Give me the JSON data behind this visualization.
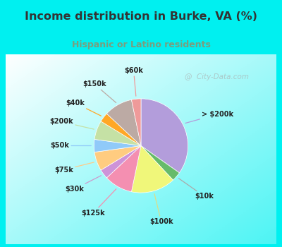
{
  "title": "Income distribution in Burke, VA (%)",
  "subtitle": "Hispanic or Latino residents",
  "title_color": "#333333",
  "subtitle_color": "#7a9e7e",
  "bg_cyan": "#00f0f0",
  "slices": [
    {
      "label": "> $200k",
      "value": 32,
      "color": "#b39ddb"
    },
    {
      "label": "$10k",
      "value": 3,
      "color": "#66bb6a"
    },
    {
      "label": "$100k",
      "value": 14,
      "color": "#f0f77a"
    },
    {
      "label": "$125k",
      "value": 9,
      "color": "#f48fb1"
    },
    {
      "label": "$30k",
      "value": 3,
      "color": "#ce93d8"
    },
    {
      "label": "$75k",
      "value": 6,
      "color": "#ffcc80"
    },
    {
      "label": "$50k",
      "value": 4,
      "color": "#90caf9"
    },
    {
      "label": "$200k",
      "value": 6,
      "color": "#c5e1a5"
    },
    {
      "label": "$40k",
      "value": 3,
      "color": "#ffa726"
    },
    {
      "label": "$150k",
      "value": 9,
      "color": "#bcaaa4"
    },
    {
      "label": "$60k",
      "value": 3,
      "color": "#ef9a9a"
    }
  ],
  "watermark": "@  City-Data.com",
  "label_line_colors": {
    "> $200k": "#b39ddb",
    "$10k": "#aaaaaa",
    "$100k": "#dddd88",
    "$125k": "#f48fb1",
    "$30k": "#cc99cc",
    "$75k": "#ffcc88",
    "$50k": "#90caf9",
    "$200k": "#c5e1a5",
    "$40k": "#ffa726",
    "$150k": "#bcaaa4",
    "$60k": "#ef9a9a"
  }
}
